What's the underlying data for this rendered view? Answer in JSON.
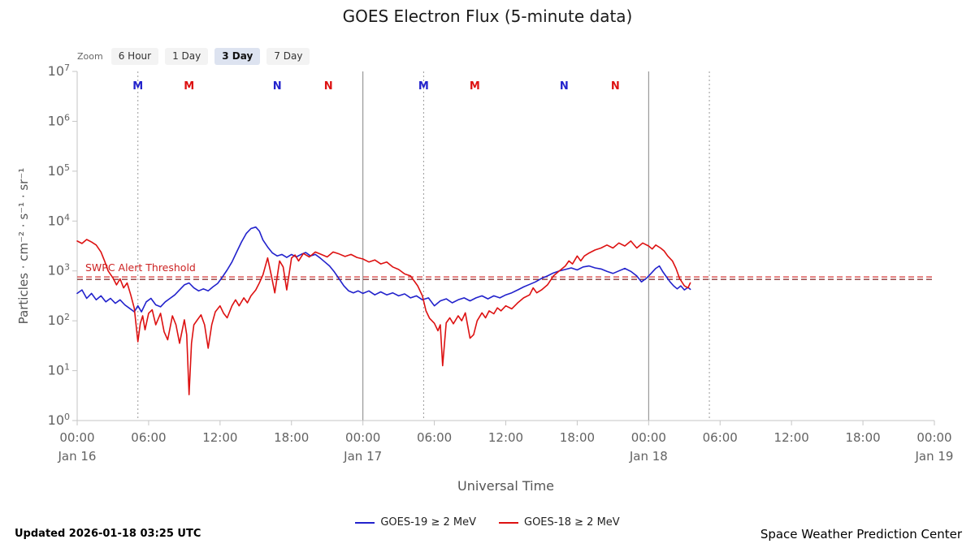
{
  "title": "GOES Electron Flux (5-minute data)",
  "zoom": {
    "label": "Zoom",
    "buttons": [
      {
        "label": "6 Hour",
        "selected": false
      },
      {
        "label": "1 Day",
        "selected": false
      },
      {
        "label": "3 Day",
        "selected": true
      },
      {
        "label": "7 Day",
        "selected": false
      }
    ]
  },
  "footer": {
    "updated": "Updated 2026-01-18 03:25 UTC",
    "source": "Space Weather Prediction Center"
  },
  "chart_data": {
    "type": "line",
    "title": "GOES Electron Flux (5-minute data)",
    "xlabel": "Universal Time",
    "ylabel": "Particles · cm⁻² · s⁻¹ · sr⁻¹",
    "y_scale": "log10",
    "xlim_hours": [
      0,
      72
    ],
    "ylog_range": [
      0,
      7
    ],
    "y_tick_exponents": [
      7,
      6,
      5,
      4,
      3,
      2,
      1,
      0
    ],
    "x_start": "Jan 16 00:00 UT",
    "x_ticks": [
      {
        "hour": 0,
        "time": "00:00",
        "day": "Jan 16"
      },
      {
        "hour": 6,
        "time": "06:00"
      },
      {
        "hour": 12,
        "time": "12:00"
      },
      {
        "hour": 18,
        "time": "18:00"
      },
      {
        "hour": 24,
        "time": "00:00",
        "day": "Jan 17"
      },
      {
        "hour": 30,
        "time": "06:00"
      },
      {
        "hour": 36,
        "time": "12:00"
      },
      {
        "hour": 42,
        "time": "18:00"
      },
      {
        "hour": 48,
        "time": "00:00",
        "day": "Jan 18"
      },
      {
        "hour": 54,
        "time": "06:00"
      },
      {
        "hour": 60,
        "time": "12:00"
      },
      {
        "hour": 66,
        "time": "18:00"
      },
      {
        "hour": 72,
        "time": "00:00",
        "day": "Jan 19"
      }
    ],
    "day_lines_hours": [
      24,
      48
    ],
    "dotted_lines_hours": [
      5.1,
      29.1,
      53.1
    ],
    "threshold": {
      "label": "SWPC Alert Threshold",
      "label_color": "#cc2222",
      "lines": [
        {
          "log10": 2.88,
          "color": "#d02020"
        },
        {
          "log10": 2.83,
          "color": "#7a1f1f"
        }
      ]
    },
    "satellite_markers": [
      {
        "hour": 5.1,
        "label": "M",
        "color": "#2222cc"
      },
      {
        "hour": 9.4,
        "label": "M",
        "color": "#dd1111"
      },
      {
        "hour": 16.8,
        "label": "N",
        "color": "#2222cc"
      },
      {
        "hour": 21.1,
        "label": "N",
        "color": "#dd1111"
      },
      {
        "hour": 29.1,
        "label": "M",
        "color": "#2222cc"
      },
      {
        "hour": 33.4,
        "label": "M",
        "color": "#dd1111"
      },
      {
        "hour": 40.9,
        "label": "N",
        "color": "#2222cc"
      },
      {
        "hour": 45.2,
        "label": "N",
        "color": "#dd1111"
      }
    ],
    "series": [
      {
        "name": "GOES-19 ≥ 2 MeV",
        "color": "#2222cc",
        "points": [
          [
            0,
            2.55
          ],
          [
            0.4,
            2.62
          ],
          [
            0.8,
            2.45
          ],
          [
            1.2,
            2.55
          ],
          [
            1.6,
            2.42
          ],
          [
            2,
            2.5
          ],
          [
            2.4,
            2.38
          ],
          [
            2.8,
            2.45
          ],
          [
            3.2,
            2.35
          ],
          [
            3.6,
            2.42
          ],
          [
            4,
            2.32
          ],
          [
            4.4,
            2.25
          ],
          [
            4.8,
            2.18
          ],
          [
            5.1,
            2.3
          ],
          [
            5.4,
            2.18
          ],
          [
            5.8,
            2.38
          ],
          [
            6.2,
            2.45
          ],
          [
            6.6,
            2.32
          ],
          [
            7,
            2.28
          ],
          [
            7.4,
            2.38
          ],
          [
            7.8,
            2.45
          ],
          [
            8.2,
            2.52
          ],
          [
            8.6,
            2.62
          ],
          [
            9,
            2.72
          ],
          [
            9.4,
            2.76
          ],
          [
            9.8,
            2.66
          ],
          [
            10.2,
            2.6
          ],
          [
            10.6,
            2.64
          ],
          [
            11,
            2.6
          ],
          [
            11.4,
            2.68
          ],
          [
            11.8,
            2.75
          ],
          [
            12.2,
            2.88
          ],
          [
            12.6,
            3.02
          ],
          [
            13,
            3.18
          ],
          [
            13.4,
            3.38
          ],
          [
            13.8,
            3.58
          ],
          [
            14.2,
            3.75
          ],
          [
            14.6,
            3.85
          ],
          [
            15,
            3.88
          ],
          [
            15.3,
            3.8
          ],
          [
            15.6,
            3.62
          ],
          [
            16,
            3.48
          ],
          [
            16.4,
            3.36
          ],
          [
            16.8,
            3.3
          ],
          [
            17.2,
            3.33
          ],
          [
            17.6,
            3.27
          ],
          [
            18,
            3.33
          ],
          [
            18.4,
            3.28
          ],
          [
            18.8,
            3.33
          ],
          [
            19.2,
            3.37
          ],
          [
            19.6,
            3.3
          ],
          [
            20,
            3.33
          ],
          [
            20.4,
            3.26
          ],
          [
            20.8,
            3.18
          ],
          [
            21.2,
            3.1
          ],
          [
            21.6,
            2.98
          ],
          [
            22,
            2.84
          ],
          [
            22.4,
            2.7
          ],
          [
            22.8,
            2.6
          ],
          [
            23.2,
            2.56
          ],
          [
            23.6,
            2.6
          ],
          [
            24,
            2.55
          ],
          [
            24.5,
            2.6
          ],
          [
            25,
            2.52
          ],
          [
            25.5,
            2.58
          ],
          [
            26,
            2.52
          ],
          [
            26.5,
            2.56
          ],
          [
            27,
            2.5
          ],
          [
            27.5,
            2.54
          ],
          [
            28,
            2.46
          ],
          [
            28.5,
            2.5
          ],
          [
            29,
            2.42
          ],
          [
            29.5,
            2.46
          ],
          [
            30,
            2.3
          ],
          [
            30.5,
            2.4
          ],
          [
            31,
            2.44
          ],
          [
            31.5,
            2.36
          ],
          [
            32,
            2.42
          ],
          [
            32.5,
            2.46
          ],
          [
            33,
            2.4
          ],
          [
            33.5,
            2.46
          ],
          [
            34,
            2.5
          ],
          [
            34.5,
            2.44
          ],
          [
            35,
            2.5
          ],
          [
            35.5,
            2.46
          ],
          [
            36,
            2.52
          ],
          [
            36.5,
            2.56
          ],
          [
            37,
            2.62
          ],
          [
            37.5,
            2.68
          ],
          [
            38,
            2.73
          ],
          [
            38.5,
            2.78
          ],
          [
            39,
            2.85
          ],
          [
            39.5,
            2.9
          ],
          [
            40,
            2.96
          ],
          [
            40.5,
            3.0
          ],
          [
            41,
            3.03
          ],
          [
            41.5,
            3.06
          ],
          [
            42,
            3.02
          ],
          [
            42.5,
            3.08
          ],
          [
            43,
            3.1
          ],
          [
            43.5,
            3.06
          ],
          [
            44,
            3.04
          ],
          [
            44.5,
            2.99
          ],
          [
            45,
            2.95
          ],
          [
            45.5,
            3.0
          ],
          [
            46,
            3.05
          ],
          [
            46.5,
            2.99
          ],
          [
            47,
            2.9
          ],
          [
            47.4,
            2.78
          ],
          [
            47.8,
            2.85
          ],
          [
            48.2,
            2.95
          ],
          [
            48.6,
            3.05
          ],
          [
            48.9,
            3.1
          ],
          [
            49.2,
            2.98
          ],
          [
            49.5,
            2.88
          ],
          [
            49.8,
            2.78
          ],
          [
            50.1,
            2.7
          ],
          [
            50.4,
            2.64
          ],
          [
            50.7,
            2.7
          ],
          [
            51,
            2.62
          ],
          [
            51.3,
            2.67
          ],
          [
            51.5,
            2.63
          ]
        ]
      },
      {
        "name": "GOES-18 ≥ 2 MeV",
        "color": "#dd1111",
        "points": [
          [
            0,
            3.6
          ],
          [
            0.4,
            3.55
          ],
          [
            0.8,
            3.63
          ],
          [
            1.2,
            3.58
          ],
          [
            1.6,
            3.52
          ],
          [
            2,
            3.38
          ],
          [
            2.3,
            3.2
          ],
          [
            2.6,
            3.0
          ],
          [
            3,
            2.86
          ],
          [
            3.3,
            2.72
          ],
          [
            3.6,
            2.84
          ],
          [
            3.9,
            2.66
          ],
          [
            4.2,
            2.76
          ],
          [
            4.5,
            2.52
          ],
          [
            4.8,
            2.25
          ],
          [
            5.1,
            1.58
          ],
          [
            5.3,
            1.95
          ],
          [
            5.5,
            2.1
          ],
          [
            5.7,
            1.82
          ],
          [
            6,
            2.15
          ],
          [
            6.3,
            2.22
          ],
          [
            6.6,
            1.92
          ],
          [
            7,
            2.15
          ],
          [
            7.3,
            1.78
          ],
          [
            7.6,
            1.62
          ],
          [
            8,
            2.1
          ],
          [
            8.3,
            1.92
          ],
          [
            8.6,
            1.55
          ],
          [
            9,
            2.02
          ],
          [
            9.2,
            1.72
          ],
          [
            9.4,
            0.52
          ],
          [
            9.6,
            1.55
          ],
          [
            9.8,
            1.92
          ],
          [
            10.1,
            2.02
          ],
          [
            10.4,
            2.12
          ],
          [
            10.7,
            1.92
          ],
          [
            11,
            1.45
          ],
          [
            11.3,
            1.92
          ],
          [
            11.6,
            2.18
          ],
          [
            12,
            2.3
          ],
          [
            12.3,
            2.15
          ],
          [
            12.6,
            2.06
          ],
          [
            13,
            2.3
          ],
          [
            13.3,
            2.42
          ],
          [
            13.6,
            2.3
          ],
          [
            14,
            2.46
          ],
          [
            14.3,
            2.36
          ],
          [
            14.6,
            2.5
          ],
          [
            15,
            2.62
          ],
          [
            15.3,
            2.76
          ],
          [
            15.6,
            2.92
          ],
          [
            16,
            3.26
          ],
          [
            16.3,
            2.92
          ],
          [
            16.6,
            2.56
          ],
          [
            17,
            3.2
          ],
          [
            17.3,
            3.08
          ],
          [
            17.6,
            2.62
          ],
          [
            18,
            3.26
          ],
          [
            18.3,
            3.32
          ],
          [
            18.6,
            3.2
          ],
          [
            19,
            3.35
          ],
          [
            19.5,
            3.28
          ],
          [
            20,
            3.38
          ],
          [
            20.5,
            3.33
          ],
          [
            21,
            3.28
          ],
          [
            21.5,
            3.38
          ],
          [
            22,
            3.34
          ],
          [
            22.5,
            3.29
          ],
          [
            23,
            3.33
          ],
          [
            23.5,
            3.27
          ],
          [
            24,
            3.24
          ],
          [
            24.5,
            3.18
          ],
          [
            25,
            3.22
          ],
          [
            25.5,
            3.14
          ],
          [
            26,
            3.18
          ],
          [
            26.5,
            3.08
          ],
          [
            27,
            3.03
          ],
          [
            27.5,
            2.94
          ],
          [
            28,
            2.9
          ],
          [
            28.3,
            2.8
          ],
          [
            28.6,
            2.7
          ],
          [
            29,
            2.5
          ],
          [
            29.3,
            2.2
          ],
          [
            29.6,
            2.05
          ],
          [
            30,
            1.95
          ],
          [
            30.3,
            1.8
          ],
          [
            30.5,
            1.92
          ],
          [
            30.7,
            1.1
          ],
          [
            31,
            1.96
          ],
          [
            31.3,
            2.06
          ],
          [
            31.6,
            1.94
          ],
          [
            32,
            2.1
          ],
          [
            32.3,
            2.0
          ],
          [
            32.6,
            2.16
          ],
          [
            33,
            1.65
          ],
          [
            33.3,
            1.72
          ],
          [
            33.6,
            2.0
          ],
          [
            34,
            2.16
          ],
          [
            34.3,
            2.06
          ],
          [
            34.6,
            2.2
          ],
          [
            35,
            2.14
          ],
          [
            35.3,
            2.26
          ],
          [
            35.6,
            2.2
          ],
          [
            36,
            2.3
          ],
          [
            36.5,
            2.24
          ],
          [
            37,
            2.36
          ],
          [
            37.5,
            2.46
          ],
          [
            38,
            2.52
          ],
          [
            38.3,
            2.66
          ],
          [
            38.6,
            2.56
          ],
          [
            39,
            2.62
          ],
          [
            39.5,
            2.72
          ],
          [
            40,
            2.9
          ],
          [
            40.5,
            3.0
          ],
          [
            41,
            3.1
          ],
          [
            41.3,
            3.2
          ],
          [
            41.6,
            3.14
          ],
          [
            42,
            3.3
          ],
          [
            42.3,
            3.2
          ],
          [
            42.6,
            3.3
          ],
          [
            43,
            3.36
          ],
          [
            43.5,
            3.42
          ],
          [
            44,
            3.46
          ],
          [
            44.5,
            3.52
          ],
          [
            45,
            3.46
          ],
          [
            45.5,
            3.56
          ],
          [
            46,
            3.5
          ],
          [
            46.5,
            3.6
          ],
          [
            47,
            3.46
          ],
          [
            47.5,
            3.56
          ],
          [
            48,
            3.5
          ],
          [
            48.3,
            3.44
          ],
          [
            48.6,
            3.52
          ],
          [
            49,
            3.46
          ],
          [
            49.3,
            3.4
          ],
          [
            49.6,
            3.3
          ],
          [
            50,
            3.2
          ],
          [
            50.3,
            3.05
          ],
          [
            50.6,
            2.85
          ],
          [
            51,
            2.7
          ],
          [
            51.3,
            2.66
          ],
          [
            51.5,
            2.76
          ]
        ]
      }
    ]
  }
}
